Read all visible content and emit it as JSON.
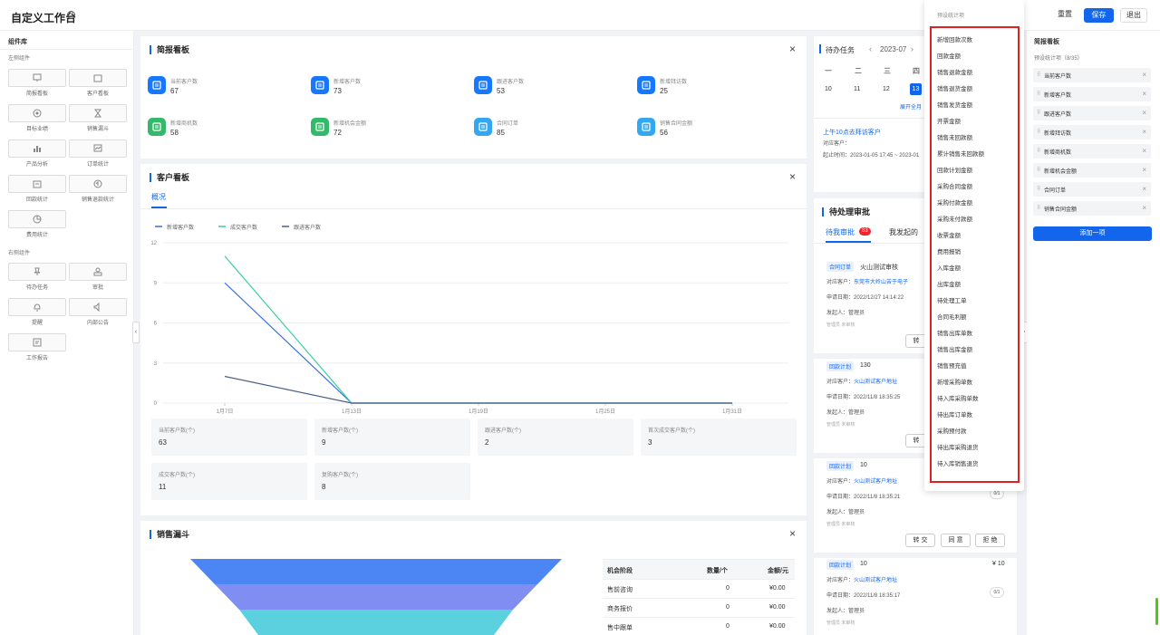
{
  "app": {
    "title": "自定义工作台",
    "help": "?",
    "reset": "重置",
    "save": "保存",
    "exit": "退出"
  },
  "left": {
    "title": "组件库",
    "left_group": "左侧组件",
    "right_group": "右侧组件",
    "left_items": [
      "简报看板",
      "客户看板",
      "目标业绩",
      "销售漏斗",
      "产品分析",
      "订单统计",
      "回款统计",
      "销售退款统计",
      "费用统计"
    ],
    "right_items": [
      "待办任务",
      "审批",
      "提醒",
      "内部公告",
      "工作报告"
    ]
  },
  "brief": {
    "title": "简报看板",
    "close": "×",
    "kpis": [
      {
        "label": "当前客户数",
        "value": "67",
        "color": "#1677ff"
      },
      {
        "label": "新增客户数",
        "value": "73",
        "color": "#1677ff"
      },
      {
        "label": "跟进客户数",
        "value": "53",
        "color": "#1677ff"
      },
      {
        "label": "新增拜访数",
        "value": "25",
        "color": "#1677ff"
      },
      {
        "label": "新增商机数",
        "value": "58",
        "color": "#34b96b"
      },
      {
        "label": "新增机会金额",
        "value": "72",
        "color": "#34b96b"
      },
      {
        "label": "合同订单",
        "value": "85",
        "color": "#33a8f0"
      },
      {
        "label": "销售合同金额",
        "value": "56",
        "color": "#33a8f0"
      }
    ]
  },
  "customer": {
    "title": "客户看板",
    "close": "×",
    "tab": "概况",
    "stats": [
      {
        "label": "当前客户数(个)",
        "value": "63"
      },
      {
        "label": "新增客户数(个)",
        "value": "9"
      },
      {
        "label": "跟进客户数(个)",
        "value": "2"
      },
      {
        "label": "首次成交客户数(个)",
        "value": "3"
      },
      {
        "label": "成交客户数(个)",
        "value": "11"
      },
      {
        "label": "复购客户数(个)",
        "value": "8"
      }
    ]
  },
  "chart_data": {
    "type": "line",
    "categories": [
      "1月7日",
      "1月13日",
      "1月19日",
      "1月25日",
      "1月31日"
    ],
    "ylim": [
      0,
      12
    ],
    "yticks": [
      "12",
      "9",
      "6",
      "3",
      "0"
    ],
    "series": [
      {
        "name": "新增客户数",
        "color": "#3b6fe0",
        "values": [
          9,
          0,
          0,
          0,
          0
        ]
      },
      {
        "name": "成交客户数",
        "color": "#3ecfa0",
        "values": [
          11,
          0,
          0,
          0,
          0
        ]
      },
      {
        "name": "跟进客户数",
        "color": "#4a5f86",
        "values": [
          2,
          0,
          0,
          0,
          0
        ]
      }
    ]
  },
  "funnel": {
    "title": "销售漏斗",
    "close": "×",
    "headers": [
      "机会阶段",
      "数量/个",
      "金额/元"
    ],
    "rows": [
      {
        "stage": "售前咨询",
        "count": "0",
        "amount": "¥0.00"
      },
      {
        "stage": "商务报价",
        "count": "0",
        "amount": "¥0.00"
      },
      {
        "stage": "售中跟单",
        "count": "0",
        "amount": "¥0.00"
      }
    ]
  },
  "todo": {
    "title": "待办任务",
    "month": "2023-07",
    "prev": "‹",
    "next": "›",
    "weekdays": [
      "一",
      "二",
      "三",
      "四"
    ],
    "days": [
      "10",
      "11",
      "12",
      "13"
    ],
    "expand": "展开全月",
    "event_title": "上午10点去拜访客户",
    "event_customer": "对应客户：",
    "event_time": "起止时间：2023-01-05 17:45 ~ 2023-01"
  },
  "approval": {
    "title": "待处理审批",
    "tab_mine": "待我审批",
    "badge": "83",
    "tab_sent": "我发起的",
    "items": [
      {
        "tag": "合同订单",
        "name": "火山测试审核",
        "customer_label": "对应客户：",
        "customer": "东莞市大岭山苦于电子",
        "date": "申请日期：2022/12/27 14:14:22",
        "by": "发起人：管理员",
        "status": "管理员 未审核",
        "transfer": "转"
      },
      {
        "tag": "回款计划",
        "name": "130",
        "customer_label": "对应客户：",
        "customer": "火山测试客户地址",
        "date": "申请日期：2022/11/8 18:35:25",
        "by": "发起人：管理员",
        "status": "管理员 未审核",
        "transfer": "转"
      },
      {
        "tag": "回款计划",
        "name": "10",
        "customer_label": "对应客户：",
        "customer": "火山测试客户地址",
        "date": "申请日期：2022/11/8 18:35:21",
        "by": "发起人：管理员",
        "status": "管理员 未审核",
        "progress": "0/1",
        "transfer": "转 交",
        "agree": "同 意",
        "reject": "拒 绝"
      },
      {
        "tag": "回款计划",
        "name": "10",
        "amount": "¥ 10",
        "customer_label": "对应客户：",
        "customer": "火山测试客户地址",
        "date": "申请日期：2022/11/8 18:35:17",
        "by": "发起人：管理员",
        "status": "管理员 未审核",
        "progress": "0/1"
      }
    ]
  },
  "dropdown": {
    "header": "预设统计项",
    "items": [
      "新增回款次数",
      "回款金额",
      "销售退款金额",
      "销售退货金额",
      "销售发货金额",
      "开票金额",
      "销售未回款额",
      "累计销售未回款额",
      "回款计划金额",
      "采购合同金额",
      "采购付款金额",
      "采购未付款额",
      "收票金额",
      "费用报销",
      "入库金额",
      "出库金额",
      "待处理工单",
      "合同毛利额",
      "销售出库单数",
      "销售出库金额",
      "销售预充值",
      "新增采购单数",
      "待入库采购单数",
      "待出库订单数",
      "采购预付款",
      "待出库采购退货",
      "待入库销售退货"
    ]
  },
  "right": {
    "title": "简报看板",
    "subtitle": "预设统计项（8/35）",
    "items": [
      "当前客户数",
      "新增客户数",
      "跟进客户数",
      "新增拜访数",
      "新增商机数",
      "新增机会金额",
      "合同订单",
      "销售合同金额"
    ],
    "add": "添加一项"
  }
}
